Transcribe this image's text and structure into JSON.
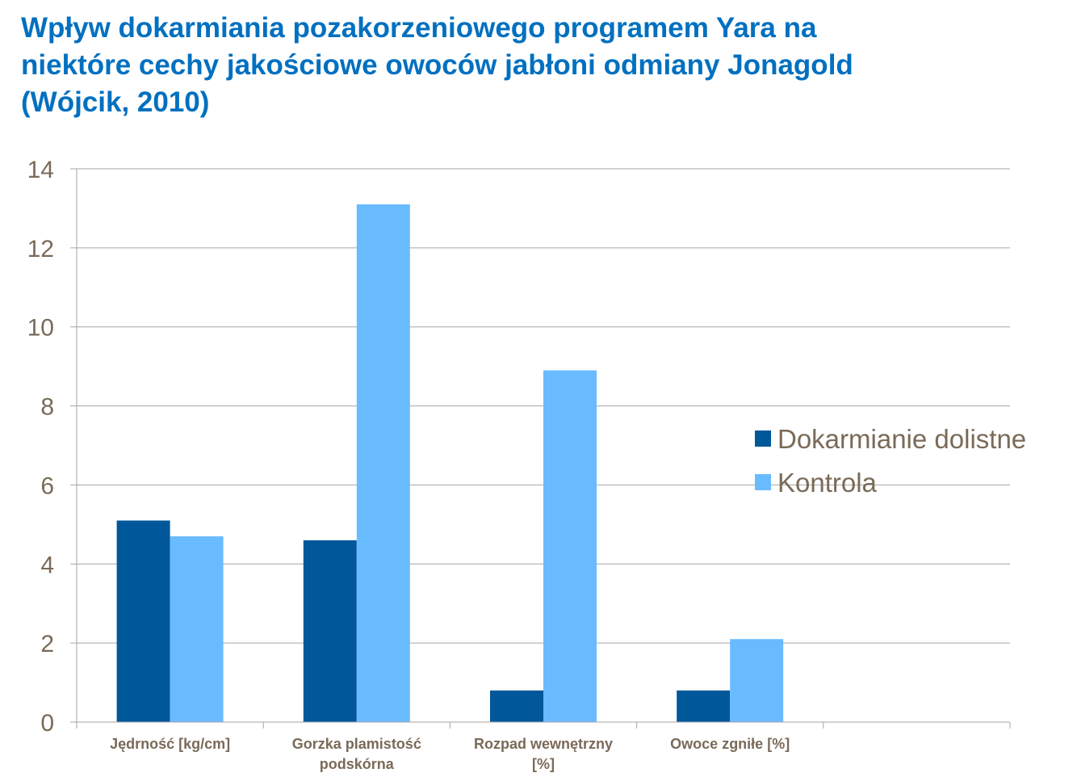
{
  "title_lines": [
    "Wpływ dokarmiania pozakorzeniowego programem Yara na",
    "niektóre cechy jakościowe owoców jabłoni odmiany Jonagold",
    "(Wójcik, 2010)"
  ],
  "chart_data": {
    "type": "bar",
    "title": "Wpływ dokarmiania pozakorzeniowego programem Yara na niektóre cechy jakościowe owoców jabłoni odmiany Jonagold (Wójcik, 2010)",
    "categories": [
      [
        "Jędrność [kg/cm]"
      ],
      [
        "Gorzka plamistość",
        "podskórna"
      ],
      [
        "Rozpad wewnętrzny",
        "[%]"
      ],
      [
        "Owoce zgniłe [%]"
      ],
      [
        ""
      ]
    ],
    "series": [
      {
        "name": "Dokarmianie dolistne",
        "color": "#00579a",
        "values": [
          5.1,
          4.6,
          0.8,
          0.8,
          null
        ]
      },
      {
        "name": "Kontrola",
        "color": "#69bbff",
        "values": [
          4.7,
          13.1,
          8.9,
          2.1,
          null
        ]
      }
    ],
    "yticks": [
      "0",
      "2",
      "4",
      "6",
      "8",
      "10",
      "12",
      "14"
    ],
    "ylim": [
      0,
      14
    ],
    "xlabel": "",
    "ylabel": "",
    "grid": true,
    "legend": "right"
  }
}
